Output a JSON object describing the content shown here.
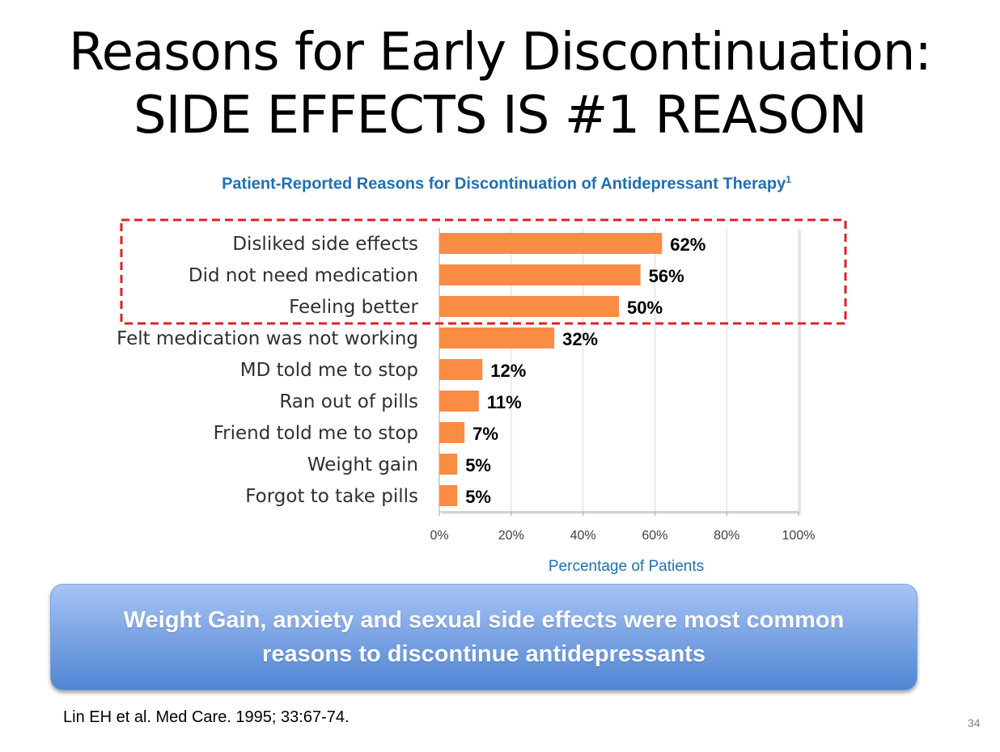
{
  "slide": {
    "title_line1": "Reasons for Early Discontinuation:",
    "title_line2": "SIDE EFFECTS IS #1 REASON",
    "callout": "Weight Gain, anxiety and sexual side effects were most common reasons to discontinue antidepressants",
    "citation": "Lin EH et al. Med Care. 1995; 33:67-74.",
    "page_number": "34"
  },
  "colors": {
    "bar": "#fb8c44",
    "chart_title": "#1f6fb5",
    "highlight_border": "#e02020",
    "grid": "#d9d9d9"
  },
  "chart_data": {
    "type": "bar",
    "orientation": "horizontal",
    "title": "Patient-Reported Reasons for Discontinuation of Antidepressant Therapy",
    "title_superscript": "1",
    "xlabel": "Percentage of Patients",
    "ylabel": "",
    "categories": [
      "Disliked side effects",
      "Did not need medication",
      "Feeling better",
      "Felt medication was not working",
      "MD told me to stop",
      "Ran out of pills",
      "Friend told me to stop",
      "Weight gain",
      "Forgot to take pills"
    ],
    "values": [
      62,
      56,
      50,
      32,
      12,
      11,
      7,
      5,
      5
    ],
    "value_labels": [
      "62%",
      "56%",
      "50%",
      "32%",
      "12%",
      "11%",
      "7%",
      "5%",
      "5%"
    ],
    "xlim": [
      0,
      100
    ],
    "xticks": [
      0,
      20,
      40,
      60,
      80,
      100
    ],
    "xtick_labels": [
      "0%",
      "20%",
      "40%",
      "60%",
      "80%",
      "100%"
    ],
    "grid": true,
    "highlighted_categories": 3
  }
}
